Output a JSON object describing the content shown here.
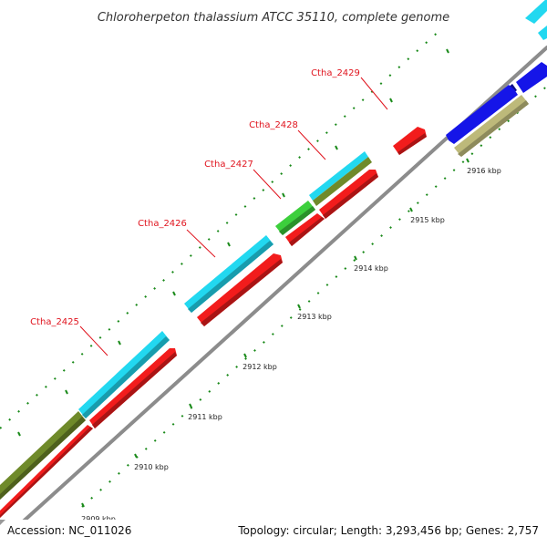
{
  "title": "Chloroherpeton thalassium ATCC 35110, complete genome",
  "footer": {
    "accession": "Accession: NC_011026",
    "summary": "Topology: circular; Length: 3,293,456 bp; Genes: 2,757"
  },
  "colors": {
    "backbone": "#8c8c8c",
    "ticks": "#1a8a1a",
    "gene_label": "#e0141e",
    "cyan": "#22d8f0",
    "olive": "#6f8a2a",
    "red": "#f21c1c",
    "green": "#3ccf3c",
    "blue": "#1515e8",
    "khaki": "#bdb97a"
  },
  "gene_labels": [
    "Ctha_2425",
    "Ctha_2426",
    "Ctha_2427",
    "Ctha_2428",
    "Ctha_2429"
  ],
  "ticks": [
    {
      "label": "2909 kbp"
    },
    {
      "label": "2910 kbp"
    },
    {
      "label": "2911 kbp"
    },
    {
      "label": "2912 kbp"
    },
    {
      "label": "2913 kbp"
    },
    {
      "label": "2914 kbp"
    },
    {
      "label": "2915 kbp"
    },
    {
      "label": "2916 kbp"
    }
  ]
}
